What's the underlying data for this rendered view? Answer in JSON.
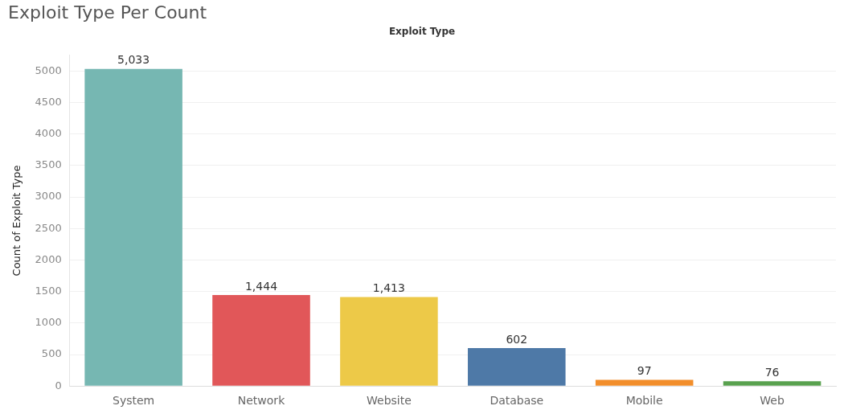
{
  "chart_data": {
    "type": "bar",
    "title": "Exploit Type Per Count",
    "xlabel": "Exploit Type",
    "ylabel": "Count of Exploit Type",
    "categories": [
      "System",
      "Network",
      "Website",
      "Database",
      "Mobile",
      "Web"
    ],
    "values": [
      5033,
      1444,
      1413,
      602,
      97,
      76
    ],
    "colors": [
      "#76b7b2",
      "#e15759",
      "#edc948",
      "#4e79a7",
      "#f28e2b",
      "#59a14f"
    ],
    "value_labels": [
      "5,033",
      "1,444",
      "1,413",
      "602",
      "97",
      "76"
    ],
    "ylim": [
      0,
      5250
    ],
    "yticks": [
      0,
      500,
      1000,
      1500,
      2000,
      2500,
      3000,
      3500,
      4000,
      4500,
      5000
    ],
    "grid": "y"
  }
}
